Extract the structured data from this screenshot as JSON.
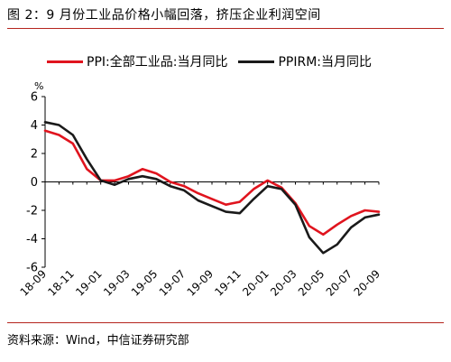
{
  "figure": {
    "title": "图 2：9 月份工业品价格小幅回落，挤压企业利润空间",
    "source": "资料来源：Wind，中信证券研究部"
  },
  "chart_data": {
    "type": "line",
    "unit_label": "%",
    "ylim": [
      -6,
      6
    ],
    "y_ticks": [
      6,
      4,
      2,
      0,
      -2,
      -4,
      -6
    ],
    "x": [
      "18-09",
      "18-10",
      "18-11",
      "18-12",
      "19-01",
      "19-02",
      "19-03",
      "19-04",
      "19-05",
      "19-06",
      "19-07",
      "19-08",
      "19-09",
      "19-10",
      "19-11",
      "19-12",
      "20-01",
      "20-02",
      "20-03",
      "20-04",
      "20-05",
      "20-06",
      "20-07",
      "20-08",
      "20-09"
    ],
    "x_tick_labels": [
      "18-09",
      "18-11",
      "19-01",
      "19-03",
      "19-05",
      "19-07",
      "19-09",
      "19-11",
      "20-01",
      "20-03",
      "20-05",
      "20-07",
      "20-09"
    ],
    "legend_position": "top",
    "grid": false,
    "series": [
      {
        "name": "PPI:全部工业品:当月同比",
        "color": "#e0141e",
        "values": [
          3.6,
          3.3,
          2.7,
          0.9,
          0.1,
          0.1,
          0.4,
          0.9,
          0.6,
          0.0,
          -0.3,
          -0.8,
          -1.2,
          -1.6,
          -1.4,
          -0.5,
          0.1,
          -0.4,
          -1.5,
          -3.1,
          -3.7,
          -3.0,
          -2.4,
          -2.0,
          -2.1
        ]
      },
      {
        "name": "PPIRM:当月同比",
        "color": "#1a1a1a",
        "values": [
          4.2,
          4.0,
          3.3,
          1.6,
          0.1,
          -0.2,
          0.2,
          0.4,
          0.2,
          -0.3,
          -0.6,
          -1.3,
          -1.7,
          -2.1,
          -2.2,
          -1.2,
          -0.3,
          -0.5,
          -1.6,
          -3.9,
          -5.0,
          -4.4,
          -3.2,
          -2.5,
          -2.3
        ]
      }
    ]
  }
}
